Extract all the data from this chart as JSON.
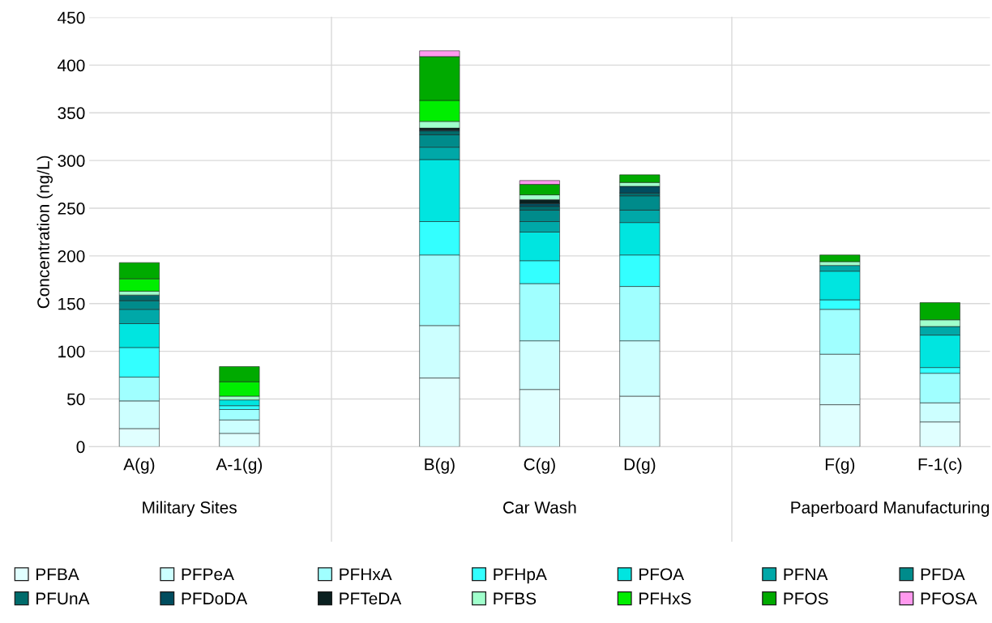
{
  "chart_data": {
    "type": "bar",
    "stacked": true,
    "ylabel": "Concentration (ng/L)",
    "categories": [
      "A(g)",
      "A-1(g)",
      null,
      "B(g)",
      "C(g)",
      "D(g)",
      null,
      "F(g)",
      "F-1(c)"
    ],
    "annotations": [
      "Military Sites",
      "Car Wash",
      "Paperboard Manufacturing"
    ],
    "ylim": [
      0,
      450
    ],
    "yticks": [
      0,
      50,
      100,
      150,
      200,
      250,
      300,
      350,
      400,
      450
    ],
    "grid": "y",
    "legend": "bottom",
    "series": [
      {
        "name": "PFBA",
        "color": "#e0ffff",
        "values": [
          19,
          14,
          null,
          72,
          60,
          53,
          null,
          44,
          26
        ]
      },
      {
        "name": "PFPeA",
        "color": "#ccffff",
        "values": [
          29,
          14,
          null,
          55,
          51,
          58,
          null,
          53,
          20
        ]
      },
      {
        "name": "PFHxA",
        "color": "#a0ffff",
        "values": [
          25,
          11,
          null,
          74,
          60,
          57,
          null,
          47,
          31
        ]
      },
      {
        "name": "PFHpA",
        "color": "#33ffff",
        "values": [
          31,
          4,
          null,
          35,
          24,
          33,
          null,
          10,
          6
        ]
      },
      {
        "name": "PFOA",
        "color": "#00e5e0",
        "values": [
          25,
          6,
          null,
          65,
          30,
          34,
          null,
          30,
          34
        ]
      },
      {
        "name": "PFNA",
        "color": "#00a8a8",
        "values": [
          15,
          0,
          null,
          13,
          11,
          13,
          null,
          6,
          9
        ]
      },
      {
        "name": "PFDA",
        "color": "#008b8b",
        "values": [
          9,
          0,
          null,
          13,
          12,
          15,
          null,
          0,
          0
        ]
      },
      {
        "name": "PFUnA",
        "color": "#006b6b",
        "values": [
          6,
          0,
          null,
          4,
          4,
          3,
          null,
          0,
          0
        ]
      },
      {
        "name": "PFDoDA",
        "color": "#004c5e",
        "values": [
          0,
          0,
          null,
          1,
          3,
          7,
          null,
          0,
          0
        ]
      },
      {
        "name": "PFTeDA",
        "color": "#0a2020",
        "values": [
          0,
          0,
          null,
          2,
          4,
          0,
          null,
          0,
          0
        ]
      },
      {
        "name": "PFBS",
        "color": "#a0ffcc",
        "values": [
          4,
          4,
          null,
          7,
          5,
          4,
          null,
          4,
          7
        ]
      },
      {
        "name": "PFHxS",
        "color": "#00ee00",
        "values": [
          13,
          15,
          null,
          22,
          0,
          0,
          null,
          0,
          0
        ]
      },
      {
        "name": "PFOS",
        "color": "#00aa00",
        "values": [
          17,
          16,
          null,
          46,
          11,
          8,
          null,
          7,
          18
        ]
      },
      {
        "name": "PFOSA",
        "color": "#ff99ee",
        "values": [
          0,
          0,
          null,
          6,
          4,
          0,
          null,
          0,
          0
        ]
      }
    ]
  }
}
